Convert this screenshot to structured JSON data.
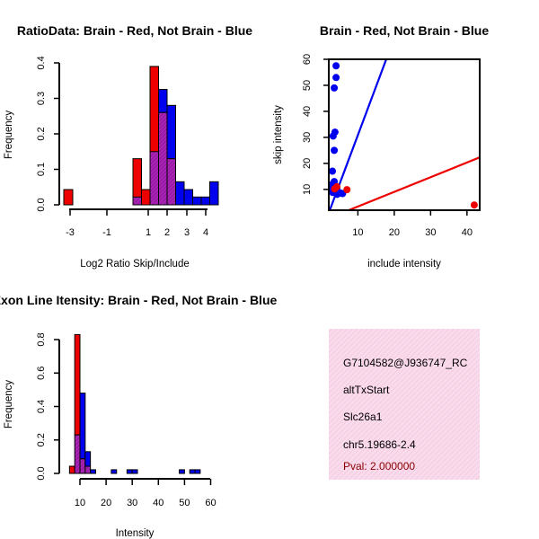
{
  "colors": {
    "red": "#ee0000",
    "blue": "#0000ee",
    "purple": "#9a1aa6",
    "info_bg": "#f9dbec",
    "info_hatch": "#f0bcd8",
    "pval": "#8b0000"
  },
  "info_box": {
    "id": "G7104582@J936747_RC",
    "event_type": "altTxStart",
    "gene": "Slc26a1",
    "location": "chr5.19686-2.4",
    "pval": "Pval: 2.000000"
  },
  "chart_data": [
    {
      "type": "bar",
      "title": "RatioData: Brain - Red, Not Brain - Blue",
      "xlabel": "Log2 Ratio Skip/Include",
      "ylabel": "Frequency",
      "xlim": [
        -3.3,
        4.1
      ],
      "ylim": [
        0,
        0.4
      ],
      "x_tick_labels": [
        "-3",
        "-1",
        "1",
        "2",
        "3",
        "4"
      ],
      "y_tick_labels": [
        "0.0",
        "0.1",
        "0.2",
        "0.3",
        "0.4"
      ],
      "series": [
        {
          "name": "Brain",
          "color": "red",
          "bins": [
            [
              -3.3,
              -2.9,
              0.043
            ],
            [
              -0.35,
              -0.05,
              0.13
            ],
            [
              -0.05,
              0.25,
              0.043
            ],
            [
              0.25,
              0.55,
              0.39
            ],
            [
              0.55,
              0.85,
              0.26
            ],
            [
              0.85,
              1.15,
              0.13
            ]
          ]
        },
        {
          "name": "Not Brain",
          "color": "blue",
          "bins": [
            [
              0.25,
              0.55,
              0.15
            ],
            [
              0.55,
              0.85,
              0.325
            ],
            [
              0.85,
              1.15,
              0.28
            ],
            [
              1.15,
              1.45,
              0.065
            ],
            [
              1.45,
              1.75,
              0.043
            ],
            [
              1.75,
              2.05,
              0.022
            ],
            [
              2.05,
              2.35,
              0.022
            ],
            [
              2.35,
              2.65,
              0.065
            ],
            [
              -0.35,
              -0.05,
              0.022
            ]
          ]
        }
      ]
    },
    {
      "type": "scatter",
      "title": "Brain - Red, Not Brain - Blue",
      "xlabel": "include intensity",
      "ylabel": "skip intensity",
      "xlim": [
        2,
        43.5
      ],
      "ylim": [
        2,
        60
      ],
      "x_tick_labels": [
        "10",
        "20",
        "30",
        "40"
      ],
      "y_tick_labels": [
        "10",
        "20",
        "30",
        "40",
        "50",
        "60"
      ],
      "series": [
        {
          "name": "Not Brain",
          "color": "blue",
          "points": [
            [
              4.0,
              57.5
            ],
            [
              4.0,
              53
            ],
            [
              3.5,
              49
            ],
            [
              3.5,
              25
            ],
            [
              3.7,
              32
            ],
            [
              3.2,
              30.5
            ],
            [
              3.0,
              17
            ],
            [
              3.5,
              13
            ],
            [
              3.0,
              12
            ],
            [
              3.8,
              11
            ],
            [
              4.2,
              10.5
            ],
            [
              2.8,
              10
            ],
            [
              3.3,
              9.5
            ],
            [
              3.9,
              9.2
            ],
            [
              4.6,
              9.0
            ],
            [
              5.2,
              8.6
            ],
            [
              5.8,
              8.4
            ],
            [
              3.1,
              8.8
            ],
            [
              2.6,
              9.6
            ],
            [
              4.3,
              8.1
            ]
          ],
          "fit_line": [
            [
              2,
              1
            ],
            [
              17.8,
              60
            ]
          ]
        },
        {
          "name": "Brain",
          "color": "red",
          "points": [
            [
              4.2,
              11
            ],
            [
              7.0,
              9.9
            ],
            [
              42.0,
              4.0
            ],
            [
              3.6,
              10.2
            ]
          ],
          "fit_line": [
            [
              5,
              0.6
            ],
            [
              43.5,
              22.3
            ]
          ]
        }
      ]
    },
    {
      "type": "bar",
      "title": "Exon Line Itensity: Brain - Red, Not Brain - Blue",
      "xlabel": "Intensity",
      "ylabel": "Frequency",
      "xlim": [
        3.8,
        59
      ],
      "ylim": [
        0,
        0.8
      ],
      "x_tick_labels": [
        "10",
        "20",
        "30",
        "40",
        "50",
        "60"
      ],
      "y_tick_labels": [
        "0.0",
        "0.2",
        "0.4",
        "0.6",
        "0.8"
      ],
      "series": [
        {
          "name": "Not Brain",
          "color": "blue",
          "bins": [
            [
              8,
              10,
              0.23
            ],
            [
              10,
              12,
              0.48
            ],
            [
              12,
              14,
              0.13
            ],
            [
              14,
              16,
              0.022
            ],
            [
              22,
              24,
              0.022
            ],
            [
              28,
              30,
              0.022
            ],
            [
              30,
              32,
              0.022
            ],
            [
              48,
              50,
              0.022
            ],
            [
              52,
              54,
              0.022
            ],
            [
              54,
              56,
              0.022
            ]
          ]
        },
        {
          "name": "Brain",
          "color": "red",
          "bins": [
            [
              6,
              8,
              0.043
            ],
            [
              8,
              10,
              0.83
            ],
            [
              10,
              12,
              0.087
            ],
            [
              12,
              14,
              0.043
            ]
          ]
        }
      ]
    }
  ]
}
